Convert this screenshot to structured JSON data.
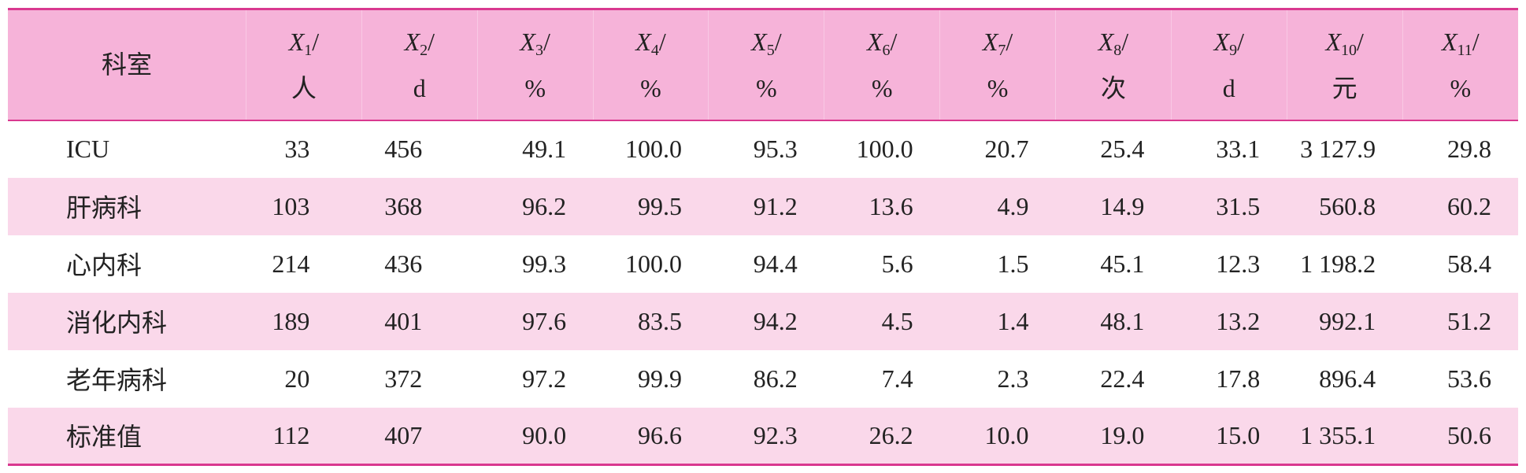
{
  "table": {
    "header": {
      "first": "科室",
      "columns": [
        {
          "symbol": "X",
          "sub": "1",
          "sep": "/",
          "unit": "人"
        },
        {
          "symbol": "X",
          "sub": "2",
          "sep": "/",
          "unit": "d"
        },
        {
          "symbol": "X",
          "sub": "3",
          "sep": "/",
          "unit": "%"
        },
        {
          "symbol": "X",
          "sub": "4",
          "sep": "/",
          "unit": "%"
        },
        {
          "symbol": "X",
          "sub": "5",
          "sep": "/",
          "unit": "%"
        },
        {
          "symbol": "X",
          "sub": "6",
          "sep": "/",
          "unit": "%"
        },
        {
          "symbol": "X",
          "sub": "7",
          "sep": "/",
          "unit": "%"
        },
        {
          "symbol": "X",
          "sub": "8",
          "sep": "/",
          "unit": "次"
        },
        {
          "symbol": "X",
          "sub": "9",
          "sep": "/",
          "unit": "d"
        },
        {
          "symbol": "X",
          "sub": "10",
          "sep": "/",
          "unit": "元"
        },
        {
          "symbol": "X",
          "sub": "11",
          "sep": "/",
          "unit": "%"
        }
      ]
    },
    "rows": [
      [
        "ICU",
        "33",
        "456",
        "49.1",
        "100.0",
        "95.3",
        "100.0",
        "20.7",
        "25.4",
        "33.1",
        "3 127.9",
        "29.8"
      ],
      [
        "肝病科",
        "103",
        "368",
        "96.2",
        "99.5",
        "91.2",
        "13.6",
        "4.9",
        "14.9",
        "31.5",
        "560.8",
        "60.2"
      ],
      [
        "心内科",
        "214",
        "436",
        "99.3",
        "100.0",
        "94.4",
        "5.6",
        "1.5",
        "45.1",
        "12.3",
        "1 198.2",
        "58.4"
      ],
      [
        "消化内科",
        "189",
        "401",
        "97.6",
        "83.5",
        "94.2",
        "4.5",
        "1.4",
        "48.1",
        "13.2",
        "992.1",
        "51.2"
      ],
      [
        "老年病科",
        "20",
        "372",
        "97.2",
        "99.9",
        "86.2",
        "7.4",
        "2.3",
        "22.4",
        "17.8",
        "896.4",
        "53.6"
      ],
      [
        "标准值",
        "112",
        "407",
        "90.0",
        "96.6",
        "92.3",
        "26.2",
        "10.0",
        "19.0",
        "15.0",
        "1 355.1",
        "50.6"
      ]
    ]
  }
}
